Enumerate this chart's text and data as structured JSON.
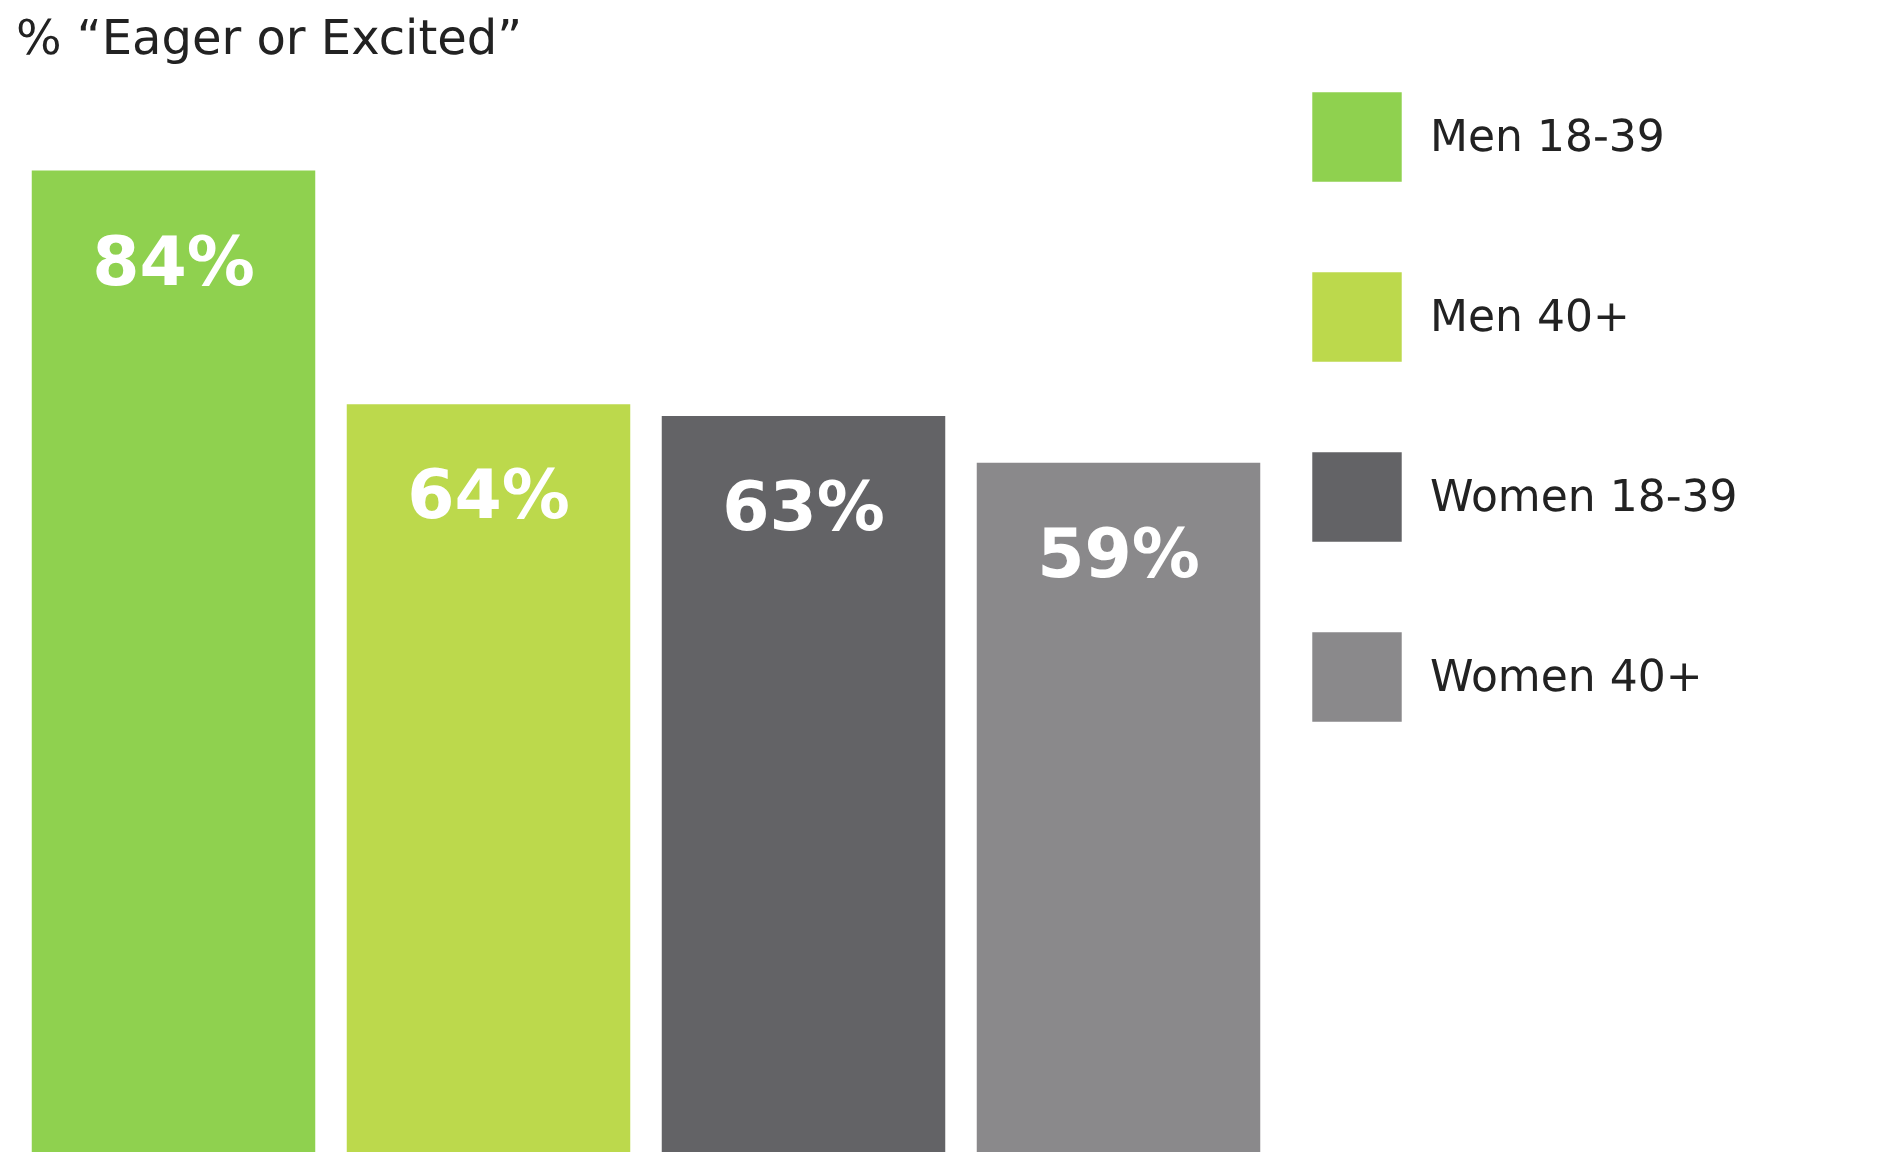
{
  "chart_data": {
    "type": "bar",
    "title": "% “Eager or Excited”",
    "categories": [
      null,
      null,
      null,
      null
    ],
    "stacked": true,
    "legend": "top right",
    "series": [
      {
        "name": "Men 18-39",
        "color": "#8fd14f",
        "values": [
          84,
          null,
          null,
          null
        ],
        "value_labels": [
          "84%",
          null,
          null,
          null
        ]
      },
      {
        "name": "Men 40+",
        "color": "#bcd94c",
        "values": [
          null,
          64,
          null,
          null
        ],
        "value_labels": [
          null,
          "64%",
          null,
          null
        ]
      },
      {
        "name": "Women 18-39",
        "color": "#636366",
        "values": [
          null,
          null,
          63,
          null
        ],
        "value_labels": [
          null,
          null,
          "63%",
          null
        ]
      },
      {
        "name": "Women 40+",
        "color": "#8a898b",
        "values": [
          null,
          null,
          null,
          59
        ],
        "value_labels": [
          null,
          null,
          null,
          "59%"
        ]
      }
    ]
  }
}
